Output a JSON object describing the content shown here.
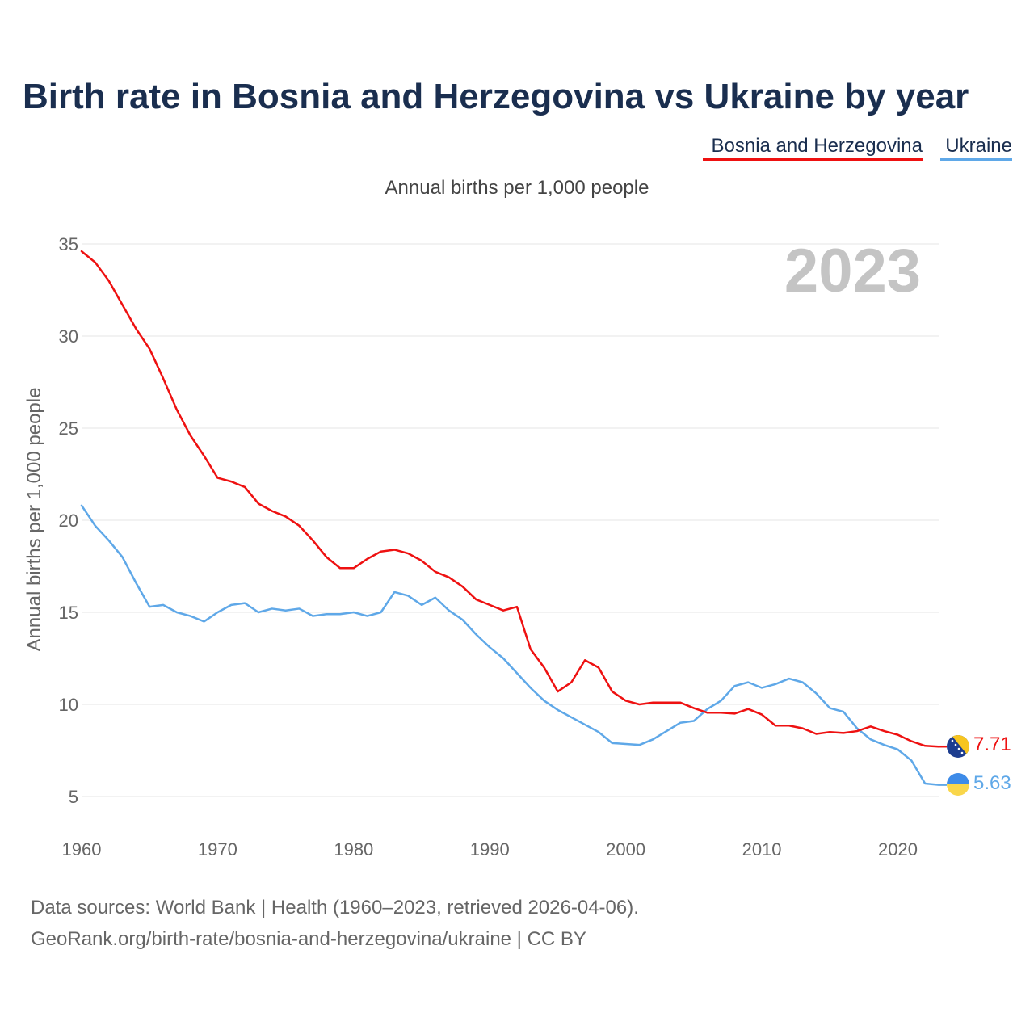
{
  "colors": {
    "bosnia": "#ee1111",
    "ukraine": "#5fa8e8",
    "title": "#1a2e4f"
  },
  "chart_data": {
    "type": "line",
    "title": "Birth rate in Bosnia and Herzegovina vs Ukraine by year",
    "subtitle": "Annual births per 1,000 people",
    "xlabel": "",
    "ylabel": "Annual births per 1,000 people",
    "year_label": "2023",
    "xlim": [
      1960,
      2023
    ],
    "ylim": [
      5,
      35
    ],
    "x_ticks": [
      1960,
      1970,
      1980,
      1990,
      2000,
      2010,
      2020
    ],
    "y_ticks": [
      5,
      10,
      15,
      20,
      25,
      30,
      35
    ],
    "legend_position": "top-right",
    "x": [
      1960,
      1961,
      1962,
      1963,
      1964,
      1965,
      1966,
      1967,
      1968,
      1969,
      1970,
      1971,
      1972,
      1973,
      1974,
      1975,
      1976,
      1977,
      1978,
      1979,
      1980,
      1981,
      1982,
      1983,
      1984,
      1985,
      1986,
      1987,
      1988,
      1989,
      1990,
      1991,
      1992,
      1993,
      1994,
      1995,
      1996,
      1997,
      1998,
      1999,
      2000,
      2001,
      2002,
      2003,
      2004,
      2005,
      2006,
      2007,
      2008,
      2009,
      2010,
      2011,
      2012,
      2013,
      2014,
      2015,
      2016,
      2017,
      2018,
      2019,
      2020,
      2021,
      2022,
      2023
    ],
    "series": [
      {
        "name": "Bosnia and Herzegovina",
        "color": "#ee1111",
        "end_label": "7.71",
        "flag": "bosnia-flag-icon",
        "values": [
          34.6,
          34.0,
          33.0,
          31.7,
          30.4,
          29.3,
          27.7,
          26.0,
          24.6,
          23.5,
          22.3,
          22.1,
          21.8,
          20.9,
          20.5,
          20.2,
          19.7,
          18.9,
          18.0,
          17.4,
          17.4,
          17.9,
          18.3,
          18.4,
          18.2,
          17.8,
          17.2,
          16.9,
          16.4,
          15.7,
          15.4,
          15.1,
          15.3,
          13.0,
          12.0,
          10.7,
          11.2,
          12.4,
          12.0,
          10.7,
          10.2,
          10.0,
          10.1,
          10.1,
          10.1,
          9.8,
          9.55,
          9.55,
          9.5,
          9.75,
          9.45,
          8.85,
          8.85,
          8.7,
          8.4,
          8.5,
          8.45,
          8.55,
          8.8,
          8.55,
          8.35,
          8.0,
          7.75,
          7.71
        ]
      },
      {
        "name": "Ukraine",
        "color": "#5fa8e8",
        "end_label": "5.63",
        "flag": "ukraine-flag-icon",
        "values": [
          20.8,
          19.7,
          18.9,
          18.0,
          16.6,
          15.3,
          15.4,
          15.0,
          14.8,
          14.5,
          15.0,
          15.4,
          15.5,
          15.0,
          15.2,
          15.1,
          15.2,
          14.8,
          14.9,
          14.9,
          15.0,
          14.8,
          15.0,
          16.1,
          15.9,
          15.4,
          15.8,
          15.1,
          14.6,
          13.8,
          13.1,
          12.5,
          11.7,
          10.9,
          10.2,
          9.7,
          9.3,
          8.9,
          8.5,
          7.9,
          7.85,
          7.8,
          8.1,
          8.55,
          9.0,
          9.1,
          9.75,
          10.2,
          11.0,
          11.2,
          10.9,
          11.1,
          11.4,
          11.2,
          10.6,
          9.8,
          9.6,
          8.7,
          8.1,
          7.8,
          7.55,
          6.95,
          5.7,
          5.63
        ]
      }
    ]
  },
  "footer": {
    "line1": "Data sources: World Bank | Health (1960–2023, retrieved 2026-04-06).",
    "line2": "GeoRank.org/birth-rate/bosnia-and-herzegovina/ukraine | CC BY"
  }
}
